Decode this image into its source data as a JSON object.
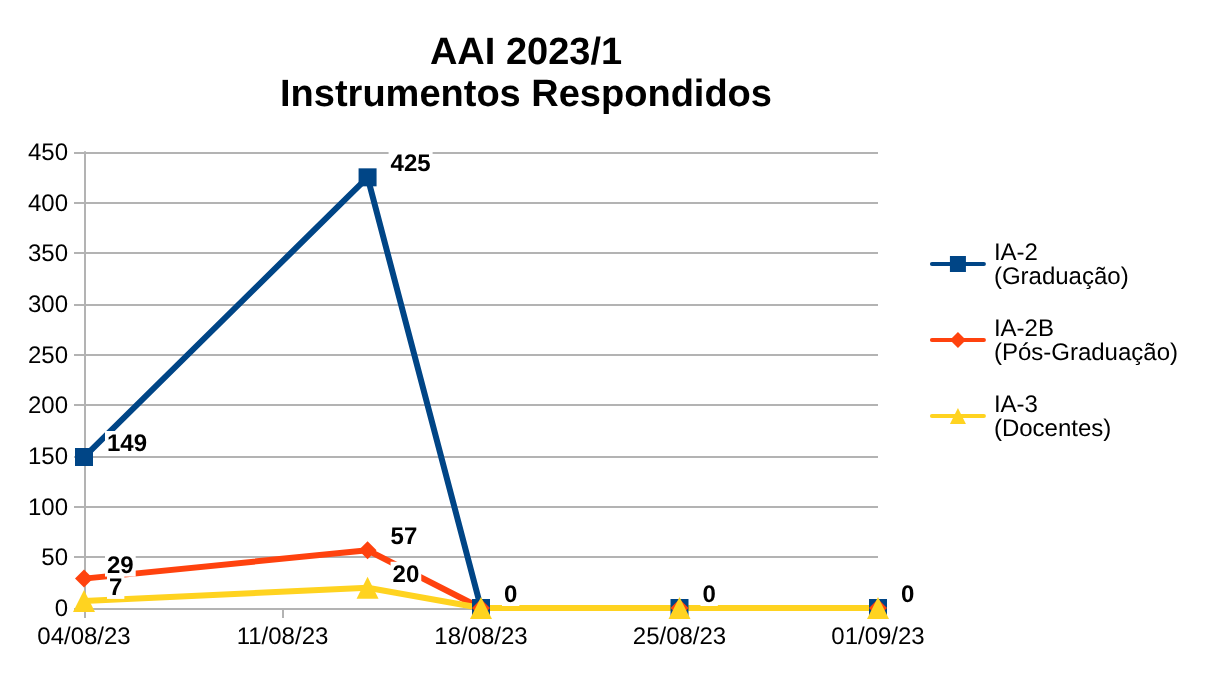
{
  "chart_data": {
    "type": "line",
    "title": "AAI 2023/1",
    "subtitle": "Instrumentos Respondidos",
    "x": [
      "2023-08-04",
      "2023-08-14",
      "2023-08-18",
      "2023-08-25",
      "2023-09-01"
    ],
    "series": [
      {
        "name": "IA-2\n(Graduação)",
        "color": "#004586",
        "marker": "square",
        "values": [
          149,
          425,
          0,
          0,
          0
        ],
        "value_labels": [
          "149",
          "425",
          "0",
          "0",
          "0"
        ]
      },
      {
        "name": "IA-2B\n(Pós-Graduação)",
        "color": "#ff420e",
        "marker": "diamond",
        "values": [
          29,
          57,
          0,
          0,
          0
        ],
        "value_labels": [
          "29",
          "57",
          null,
          null,
          null
        ]
      },
      {
        "name": "IA-3\n(Docentes)",
        "color": "#ffd320",
        "marker": "triangle",
        "values": [
          7,
          20,
          0,
          0,
          0
        ],
        "value_labels": [
          "7",
          "20",
          null,
          null,
          null
        ]
      }
    ],
    "xlim": [
      "2023-08-04",
      "2023-09-01"
    ],
    "xticks": [
      {
        "value": "2023-08-04",
        "label": "04/08/23"
      },
      {
        "value": "2023-08-11",
        "label": "11/08/23"
      },
      {
        "value": "2023-08-18",
        "label": "18/08/23"
      },
      {
        "value": "2023-08-25",
        "label": "25/08/23"
      },
      {
        "value": "2023-09-01",
        "label": "01/09/23"
      }
    ],
    "ylim": [
      0,
      450
    ],
    "yticks": [
      0,
      50,
      100,
      150,
      200,
      250,
      300,
      350,
      400,
      450
    ],
    "grid": "y",
    "legend": "right",
    "line_style": "solid"
  }
}
